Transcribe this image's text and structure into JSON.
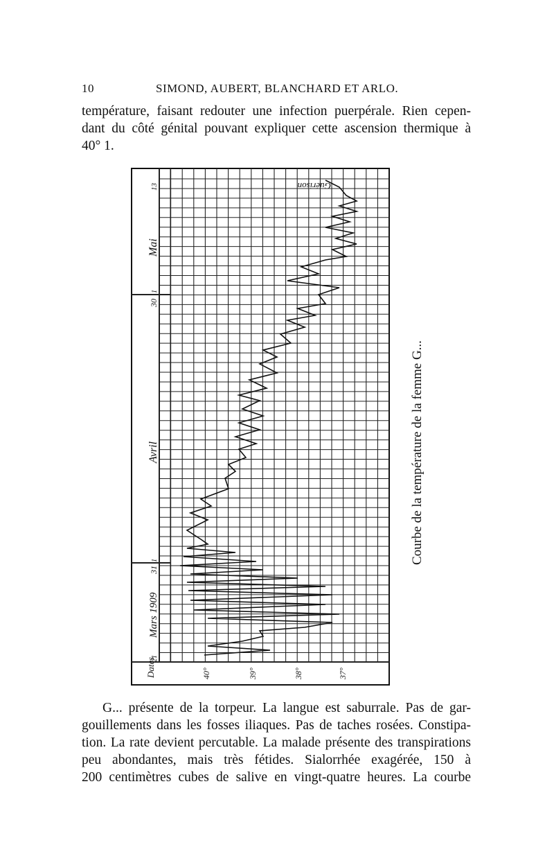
{
  "header": {
    "page_number": "10",
    "running_title": "SIMOND, AUBERT, BLANCHARD ET ARLO."
  },
  "paragraphs": [
    [
      "température, faisant redouter une infection puerpérale. Rien cepen-",
      "dant du côté génital pouvant expliquer cette ascension thermique à",
      "40° 1."
    ],
    [
      "G... présente de la torpeur. La langue est saburrale. Pas de gar-",
      "gouillements dans les fosses iliaques. Pas de taches rosées. Constipa-",
      "tion. La rate devient percutable. La malade présente des transpirations",
      "peu abondantes, mais très fétides. Sialorrhée exagérée, 150 à",
      "200 centimètres cubes de salive en vingt-quatre heures. La courbe"
    ]
  ],
  "figure": {
    "date_column_label": "Dates",
    "date_labels": [
      "21",
      "Mars 1909",
      "31",
      "1",
      "Avril",
      "30",
      "1",
      "Mai",
      "13"
    ],
    "annotation": "Guérison",
    "temperature_labels": [
      "40°",
      "39°",
      "38°",
      "37°"
    ],
    "caption": "Courbe de la température de la femme G..."
  }
}
